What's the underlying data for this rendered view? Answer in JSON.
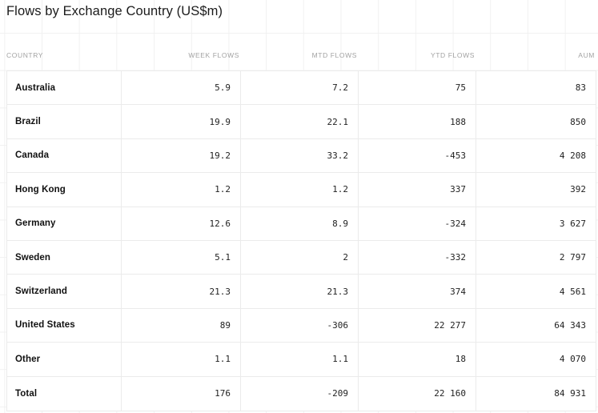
{
  "title": "Flows by Exchange Country (US$m)",
  "table": {
    "headers": {
      "country": "COUNTRY",
      "week": "WEEK FLOWS",
      "mtd": "MTD FLOWS",
      "ytd": "YTD FLOWS",
      "aum": "AUM"
    },
    "rows": [
      {
        "country": "Australia",
        "week": "5.9",
        "mtd": "7.2",
        "ytd": "75",
        "aum": "83"
      },
      {
        "country": "Brazil",
        "week": "19.9",
        "mtd": "22.1",
        "ytd": "188",
        "aum": "850"
      },
      {
        "country": "Canada",
        "week": "19.2",
        "mtd": "33.2",
        "ytd": "-453",
        "aum": "4 208"
      },
      {
        "country": "Hong Kong",
        "week": "1.2",
        "mtd": "1.2",
        "ytd": "337",
        "aum": "392"
      },
      {
        "country": "Germany",
        "week": "12.6",
        "mtd": "8.9",
        "ytd": "-324",
        "aum": "3 627"
      },
      {
        "country": "Sweden",
        "week": "5.1",
        "mtd": "2",
        "ytd": "-332",
        "aum": "2 797"
      },
      {
        "country": "Switzerland",
        "week": "21.3",
        "mtd": "21.3",
        "ytd": "374",
        "aum": "4 561"
      },
      {
        "country": "United States",
        "week": "89",
        "mtd": "-306",
        "ytd": "22 277",
        "aum": "64 343"
      },
      {
        "country": "Other",
        "week": "1.1",
        "mtd": "1.1",
        "ytd": "18",
        "aum": "4 070"
      },
      {
        "country": "Total",
        "week": "176",
        "mtd": "-209",
        "ytd": "22 160",
        "aum": "84 931"
      }
    ]
  },
  "colors": {
    "title_text": "#1b1b1b",
    "header_label": "#a2a2a2",
    "row_border": "#ebebeb",
    "background_grid_line": "#f1f1f1",
    "value_text": "#222222",
    "country_text": "#111111"
  }
}
